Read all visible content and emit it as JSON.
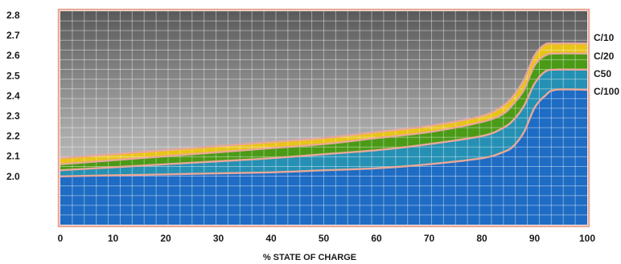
{
  "chart_data": {
    "type": "area",
    "title": "",
    "xlabel": "% STATE OF CHARGE",
    "ylabel": "",
    "x_ticks": [
      0,
      10,
      20,
      30,
      40,
      50,
      60,
      70,
      80,
      90,
      100
    ],
    "y_ticks": [
      2.0,
      2.1,
      2.2,
      2.3,
      2.4,
      2.5,
      2.6,
      2.7,
      2.8
    ],
    "xlim": [
      0,
      100
    ],
    "ylim": [
      1.76,
      2.82
    ],
    "grid": true,
    "legend_placement": "right (labels at line ends)",
    "x": [
      0,
      10,
      20,
      30,
      40,
      50,
      60,
      70,
      80,
      84,
      86,
      88,
      90,
      92,
      94,
      100
    ],
    "series": [
      {
        "name": "C/10",
        "values": [
          2.09,
          2.11,
          2.13,
          2.15,
          2.17,
          2.19,
          2.22,
          2.25,
          2.3,
          2.35,
          2.4,
          2.48,
          2.6,
          2.655,
          2.66,
          2.66
        ]
      },
      {
        "name": "C/20",
        "values": [
          2.06,
          2.08,
          2.1,
          2.12,
          2.14,
          2.16,
          2.19,
          2.22,
          2.27,
          2.31,
          2.36,
          2.43,
          2.55,
          2.6,
          2.61,
          2.61
        ]
      },
      {
        "name": "C50",
        "values": [
          2.03,
          2.045,
          2.06,
          2.075,
          2.09,
          2.11,
          2.13,
          2.16,
          2.2,
          2.24,
          2.28,
          2.35,
          2.46,
          2.52,
          2.53,
          2.53
        ]
      },
      {
        "name": "C/100",
        "values": [
          2.0,
          2.005,
          2.01,
          2.015,
          2.02,
          2.03,
          2.04,
          2.06,
          2.09,
          2.12,
          2.15,
          2.22,
          2.34,
          2.4,
          2.43,
          2.43
        ]
      }
    ]
  },
  "style": {
    "band_colors": [
      "#e8c418",
      "#4a9a16",
      "#2590b4",
      "#1e6cc4"
    ],
    "outline_color": "#e8a898",
    "background_top": "#5a5a5a",
    "background_bottom": "#d2d2d2"
  }
}
